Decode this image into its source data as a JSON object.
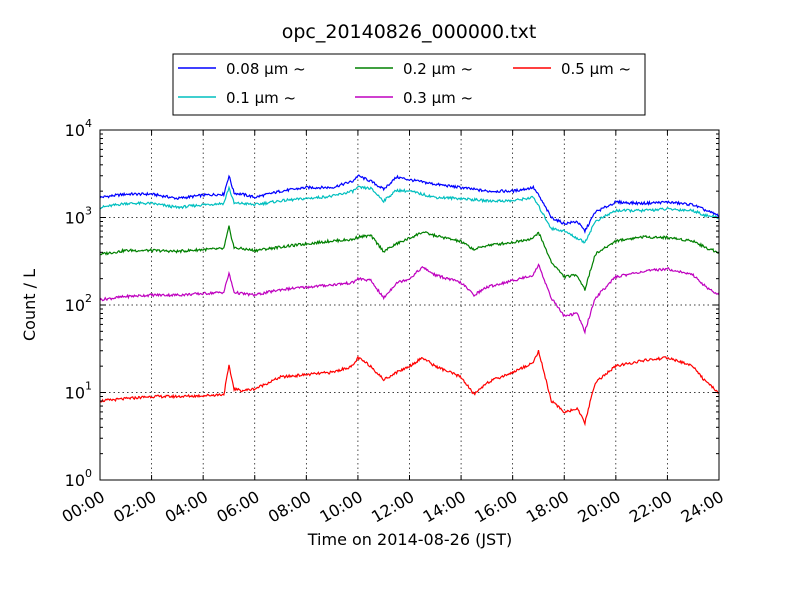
{
  "chart_data": {
    "type": "line",
    "title": "opc_20140826_000000.txt",
    "xlabel": "Time on 2014-08-26 (JST)",
    "ylabel": "Count / L",
    "x_ticks": [
      "00:00",
      "02:00",
      "04:00",
      "06:00",
      "08:00",
      "10:00",
      "12:00",
      "14:00",
      "16:00",
      "18:00",
      "20:00",
      "22:00",
      "24:00"
    ],
    "xlim": [
      0,
      24
    ],
    "y_scale": "log",
    "ylim": [
      1,
      10000
    ],
    "y_ticks": [
      {
        "value": 1,
        "base": "10",
        "exp": "0"
      },
      {
        "value": 10,
        "base": "10",
        "exp": "1"
      },
      {
        "value": 100,
        "base": "10",
        "exp": "2"
      },
      {
        "value": 1000,
        "base": "10",
        "exp": "3"
      },
      {
        "value": 10000,
        "base": "10",
        "exp": "4"
      }
    ],
    "grid": true,
    "legend_position": "top-center",
    "series": [
      {
        "name": "0.08 μm ~",
        "color": "#0000ff",
        "points": [
          [
            0,
            1700
          ],
          [
            1,
            1850
          ],
          [
            2,
            1850
          ],
          [
            3,
            1650
          ],
          [
            4,
            1800
          ],
          [
            4.8,
            1850
          ],
          [
            5,
            3000
          ],
          [
            5.2,
            1900
          ],
          [
            5.5,
            1850
          ],
          [
            6,
            1700
          ],
          [
            7,
            2000
          ],
          [
            8,
            2200
          ],
          [
            9,
            2200
          ],
          [
            9.8,
            2600
          ],
          [
            10,
            3000
          ],
          [
            10.5,
            2600
          ],
          [
            11,
            2100
          ],
          [
            11.5,
            2900
          ],
          [
            12,
            2700
          ],
          [
            13,
            2400
          ],
          [
            14,
            2200
          ],
          [
            15,
            2000
          ],
          [
            16,
            2000
          ],
          [
            16.8,
            2200
          ],
          [
            17,
            1800
          ],
          [
            17.5,
            1000
          ],
          [
            18,
            850
          ],
          [
            18.5,
            900
          ],
          [
            18.8,
            700
          ],
          [
            19.2,
            1150
          ],
          [
            20,
            1500
          ],
          [
            21,
            1450
          ],
          [
            22,
            1500
          ],
          [
            23,
            1400
          ],
          [
            23.5,
            1200
          ],
          [
            24,
            1050
          ]
        ]
      },
      {
        "name": "0.1 μm ~",
        "color": "#00bfbf",
        "points": [
          [
            0,
            1300
          ],
          [
            1,
            1450
          ],
          [
            2,
            1450
          ],
          [
            3,
            1300
          ],
          [
            4,
            1400
          ],
          [
            4.8,
            1450
          ],
          [
            5,
            2200
          ],
          [
            5.2,
            1450
          ],
          [
            5.5,
            1450
          ],
          [
            6,
            1400
          ],
          [
            7,
            1550
          ],
          [
            8,
            1650
          ],
          [
            9,
            1750
          ],
          [
            9.8,
            2000
          ],
          [
            10,
            2200
          ],
          [
            10.5,
            2150
          ],
          [
            11,
            1550
          ],
          [
            11.5,
            2050
          ],
          [
            12,
            2000
          ],
          [
            13,
            1700
          ],
          [
            14,
            1650
          ],
          [
            15,
            1550
          ],
          [
            16,
            1550
          ],
          [
            16.8,
            1700
          ],
          [
            17,
            1350
          ],
          [
            17.5,
            750
          ],
          [
            18,
            700
          ],
          [
            18.5,
            580
          ],
          [
            18.8,
            520
          ],
          [
            19.2,
            900
          ],
          [
            20,
            1200
          ],
          [
            21,
            1200
          ],
          [
            22,
            1250
          ],
          [
            23,
            1200
          ],
          [
            23.5,
            1050
          ],
          [
            24,
            1000
          ]
        ]
      },
      {
        "name": "0.2 μm ~",
        "color": "#008000",
        "points": [
          [
            0,
            380
          ],
          [
            1,
            420
          ],
          [
            2,
            420
          ],
          [
            3,
            410
          ],
          [
            4,
            430
          ],
          [
            4.8,
            440
          ],
          [
            5,
            780
          ],
          [
            5.2,
            450
          ],
          [
            5.5,
            440
          ],
          [
            6,
            420
          ],
          [
            7,
            460
          ],
          [
            8,
            500
          ],
          [
            9,
            540
          ],
          [
            9.8,
            560
          ],
          [
            10,
            600
          ],
          [
            10.5,
            620
          ],
          [
            11,
            410
          ],
          [
            11.5,
            500
          ],
          [
            12,
            580
          ],
          [
            12.5,
            680
          ],
          [
            13,
            620
          ],
          [
            14,
            530
          ],
          [
            14.5,
            430
          ],
          [
            15,
            480
          ],
          [
            16,
            520
          ],
          [
            16.8,
            580
          ],
          [
            17,
            680
          ],
          [
            17.5,
            310
          ],
          [
            18,
            210
          ],
          [
            18.5,
            220
          ],
          [
            18.8,
            150
          ],
          [
            19.2,
            380
          ],
          [
            20,
            540
          ],
          [
            21,
            600
          ],
          [
            22,
            590
          ],
          [
            23,
            540
          ],
          [
            23.5,
            450
          ],
          [
            24,
            400
          ]
        ]
      },
      {
        "name": "0.3 μm ~",
        "color": "#bf00bf",
        "points": [
          [
            0,
            115
          ],
          [
            1,
            125
          ],
          [
            2,
            130
          ],
          [
            3,
            130
          ],
          [
            4,
            135
          ],
          [
            4.8,
            140
          ],
          [
            5,
            230
          ],
          [
            5.2,
            140
          ],
          [
            5.5,
            135
          ],
          [
            6,
            130
          ],
          [
            7,
            150
          ],
          [
            8,
            160
          ],
          [
            9,
            170
          ],
          [
            9.8,
            180
          ],
          [
            10,
            200
          ],
          [
            10.5,
            190
          ],
          [
            11,
            120
          ],
          [
            11.5,
            180
          ],
          [
            12,
            200
          ],
          [
            12.5,
            270
          ],
          [
            13,
            220
          ],
          [
            14,
            180
          ],
          [
            14.5,
            130
          ],
          [
            15,
            160
          ],
          [
            16,
            190
          ],
          [
            16.8,
            220
          ],
          [
            17,
            290
          ],
          [
            17.5,
            120
          ],
          [
            18,
            75
          ],
          [
            18.5,
            80
          ],
          [
            18.8,
            50
          ],
          [
            19.2,
            120
          ],
          [
            20,
            210
          ],
          [
            21,
            240
          ],
          [
            22,
            260
          ],
          [
            23,
            220
          ],
          [
            23.5,
            160
          ],
          [
            24,
            130
          ]
        ]
      },
      {
        "name": "0.5 μm ~",
        "color": "#ff0000",
        "points": [
          [
            0,
            8
          ],
          [
            1,
            8.5
          ],
          [
            2,
            9
          ],
          [
            3,
            9
          ],
          [
            4,
            9.2
          ],
          [
            4.8,
            9.5
          ],
          [
            5,
            20
          ],
          [
            5.2,
            11
          ],
          [
            5.5,
            10.5
          ],
          [
            6,
            11
          ],
          [
            7,
            15
          ],
          [
            8,
            16
          ],
          [
            9,
            17
          ],
          [
            9.8,
            20
          ],
          [
            10,
            25
          ],
          [
            10.5,
            20
          ],
          [
            11,
            14
          ],
          [
            11.5,
            17
          ],
          [
            12,
            20
          ],
          [
            12.5,
            25
          ],
          [
            13,
            20
          ],
          [
            14,
            15
          ],
          [
            14.5,
            9.5
          ],
          [
            15,
            13
          ],
          [
            16,
            17
          ],
          [
            16.8,
            22
          ],
          [
            17,
            30
          ],
          [
            17.5,
            8
          ],
          [
            18,
            6
          ],
          [
            18.5,
            6.5
          ],
          [
            18.8,
            4.5
          ],
          [
            19.2,
            13
          ],
          [
            20,
            20
          ],
          [
            21,
            23
          ],
          [
            22,
            25
          ],
          [
            23,
            20
          ],
          [
            23.5,
            13
          ],
          [
            24,
            10
          ]
        ]
      }
    ]
  }
}
